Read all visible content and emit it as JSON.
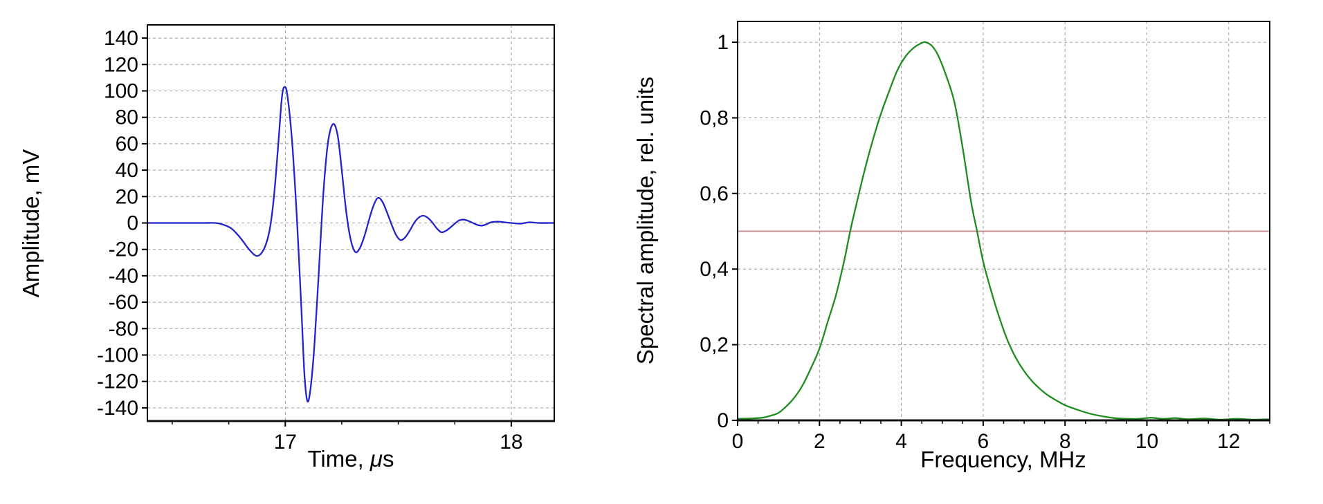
{
  "page": {
    "background": "#ffffff"
  },
  "colors": {
    "pulse_line": "#2323cc",
    "spectrum_line": "#1e8c1e",
    "half_level_line": "#cc7f87",
    "grid": "#9b9b9b",
    "frame": "#000000"
  },
  "chart_data": [
    {
      "id": "time-domain-chart",
      "type": "line",
      "title": "",
      "xlabel": "Time, μs",
      "xlabel_parts": [
        "Time, ",
        "μ",
        "s"
      ],
      "ylabel": "Amplitude, mV",
      "xlim": [
        16.39,
        18.19
      ],
      "ylim": [
        -150,
        150
      ],
      "grid": "on",
      "x_tick_values": [
        17,
        18
      ],
      "x_tick_labels": [
        "17",
        "18"
      ],
      "x_minor_step": 0.25,
      "y_tick_values": [
        140,
        120,
        100,
        80,
        60,
        40,
        20,
        0,
        -20,
        -40,
        -60,
        -80,
        -100,
        -120,
        -140
      ],
      "y_tick_labels": [
        "140",
        "120",
        "100",
        "80",
        "60",
        "40",
        "20",
        "0",
        "-20",
        "-40",
        "-60",
        "-80",
        "-100",
        "-120",
        "-140"
      ],
      "grid_x": [
        17,
        18
      ],
      "grid_y": [
        140,
        120,
        100,
        80,
        60,
        40,
        20,
        0,
        -20,
        -40,
        -60,
        -80,
        -100,
        -120,
        -140
      ],
      "series": [
        {
          "name": "ultrasonic-echo-pulse",
          "color": "#2323cc",
          "width": 2.3,
          "points": [
            [
              16.39,
              0
            ],
            [
              16.46,
              0
            ],
            [
              16.52,
              0
            ],
            [
              16.58,
              0
            ],
            [
              16.64,
              0
            ],
            [
              16.69,
              0
            ],
            [
              16.72,
              -1
            ],
            [
              16.76,
              -4
            ],
            [
              16.8,
              -11
            ],
            [
              16.84,
              -20
            ],
            [
              16.875,
              -25
            ],
            [
              16.905,
              -20
            ],
            [
              16.93,
              -6
            ],
            [
              16.95,
              20
            ],
            [
              16.97,
              62
            ],
            [
              16.985,
              95
            ],
            [
              16.997,
              103
            ],
            [
              17.01,
              96
            ],
            [
              17.03,
              62
            ],
            [
              17.05,
              8
            ],
            [
              17.07,
              -60
            ],
            [
              17.085,
              -115
            ],
            [
              17.098,
              -135
            ],
            [
              17.112,
              -125
            ],
            [
              17.13,
              -90
            ],
            [
              17.15,
              -32
            ],
            [
              17.17,
              26
            ],
            [
              17.19,
              62
            ],
            [
              17.212,
              75
            ],
            [
              17.232,
              66
            ],
            [
              17.25,
              40
            ],
            [
              17.27,
              8
            ],
            [
              17.29,
              -13
            ],
            [
              17.31,
              -22
            ],
            [
              17.33,
              -19
            ],
            [
              17.35,
              -10
            ],
            [
              17.37,
              2
            ],
            [
              17.39,
              13
            ],
            [
              17.41,
              19
            ],
            [
              17.43,
              16
            ],
            [
              17.45,
              8
            ],
            [
              17.47,
              -1
            ],
            [
              17.49,
              -9
            ],
            [
              17.51,
              -13
            ],
            [
              17.53,
              -11
            ],
            [
              17.55,
              -6
            ],
            [
              17.57,
              0
            ],
            [
              17.59,
              4
            ],
            [
              17.61,
              5.5
            ],
            [
              17.63,
              4
            ],
            [
              17.65,
              0.5
            ],
            [
              17.67,
              -4
            ],
            [
              17.69,
              -7
            ],
            [
              17.71,
              -6
            ],
            [
              17.73,
              -3.5
            ],
            [
              17.75,
              -0.5
            ],
            [
              17.77,
              2
            ],
            [
              17.79,
              2.5
            ],
            [
              17.81,
              1.5
            ],
            [
              17.83,
              0
            ],
            [
              17.85,
              -1.5
            ],
            [
              17.87,
              -2
            ],
            [
              17.89,
              -1
            ],
            [
              17.91,
              0.5
            ],
            [
              17.94,
              1
            ],
            [
              17.97,
              0.5
            ],
            [
              18.0,
              0
            ],
            [
              18.04,
              -0.5
            ],
            [
              18.08,
              0.5
            ],
            [
              18.12,
              0
            ],
            [
              18.19,
              0
            ]
          ]
        }
      ]
    },
    {
      "id": "spectrum-chart",
      "type": "line",
      "title": "",
      "xlabel": "Frequency, MHz",
      "ylabel": "Spectral amplitude, rel. units",
      "xlim": [
        0,
        13
      ],
      "ylim": [
        0,
        1.055
      ],
      "grid": "on",
      "x_tick_values": [
        0,
        2,
        4,
        6,
        8,
        10,
        12
      ],
      "x_tick_labels": [
        "0",
        "2",
        "4",
        "6",
        "8",
        "10",
        "12"
      ],
      "x_minor_step": 0.5,
      "y_tick_values": [
        0,
        0.2,
        0.4,
        0.6,
        0.8,
        1
      ],
      "y_tick_labels": [
        "0",
        "0,2",
        "0,4",
        "0,6",
        "0,8",
        "1"
      ],
      "grid_x": [
        2,
        4,
        6,
        8,
        10,
        12
      ],
      "grid_y": [
        0.2,
        0.4,
        0.6,
        0.8,
        1
      ],
      "series": [
        {
          "name": "half-amplitude-level",
          "color": "#cc7f87",
          "width": 1.8,
          "points": [
            [
              0,
              0.5
            ],
            [
              13,
              0.5
            ]
          ]
        },
        {
          "name": "spectral-amplitude",
          "color": "#1e8c1e",
          "width": 2.3,
          "points": [
            [
              0,
              0.004
            ],
            [
              0.3,
              0.005
            ],
            [
              0.6,
              0.007
            ],
            [
              0.8,
              0.012
            ],
            [
              1.0,
              0.02
            ],
            [
              1.2,
              0.038
            ],
            [
              1.4,
              0.062
            ],
            [
              1.6,
              0.095
            ],
            [
              1.8,
              0.14
            ],
            [
              2.0,
              0.19
            ],
            [
              2.2,
              0.26
            ],
            [
              2.4,
              0.33
            ],
            [
              2.6,
              0.42
            ],
            [
              2.75,
              0.5
            ],
            [
              2.9,
              0.57
            ],
            [
              3.1,
              0.66
            ],
            [
              3.3,
              0.74
            ],
            [
              3.5,
              0.81
            ],
            [
              3.7,
              0.87
            ],
            [
              3.9,
              0.925
            ],
            [
              4.1,
              0.962
            ],
            [
              4.3,
              0.985
            ],
            [
              4.5,
              0.998
            ],
            [
              4.6,
              1.0
            ],
            [
              4.75,
              0.99
            ],
            [
              4.9,
              0.965
            ],
            [
              5.1,
              0.91
            ],
            [
              5.3,
              0.84
            ],
            [
              5.5,
              0.72
            ],
            [
              5.7,
              0.58
            ],
            [
              5.85,
              0.5
            ],
            [
              6.0,
              0.42
            ],
            [
              6.2,
              0.34
            ],
            [
              6.4,
              0.27
            ],
            [
              6.6,
              0.21
            ],
            [
              6.8,
              0.165
            ],
            [
              7.0,
              0.13
            ],
            [
              7.2,
              0.103
            ],
            [
              7.4,
              0.082
            ],
            [
              7.6,
              0.065
            ],
            [
              7.8,
              0.052
            ],
            [
              8.0,
              0.04
            ],
            [
              8.3,
              0.028
            ],
            [
              8.6,
              0.018
            ],
            [
              8.9,
              0.011
            ],
            [
              9.2,
              0.006
            ],
            [
              9.5,
              0.004
            ],
            [
              9.8,
              0.004
            ],
            [
              10.1,
              0.007
            ],
            [
              10.4,
              0.004
            ],
            [
              10.7,
              0.006
            ],
            [
              11.0,
              0.003
            ],
            [
              11.4,
              0.005
            ],
            [
              11.8,
              0.002
            ],
            [
              12.2,
              0.004
            ],
            [
              12.6,
              0.002
            ],
            [
              13,
              0.003
            ]
          ]
        }
      ]
    }
  ]
}
